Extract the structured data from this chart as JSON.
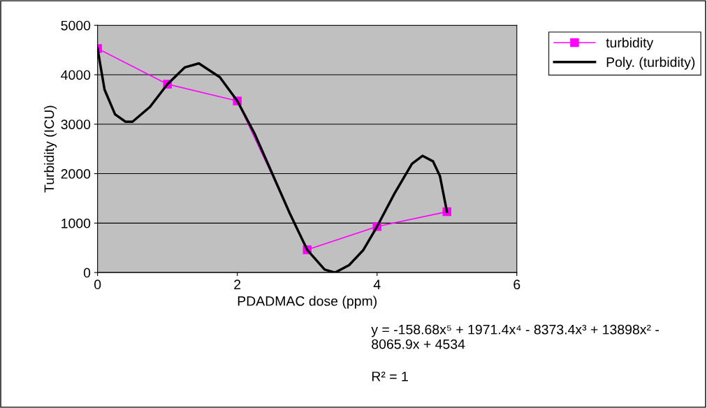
{
  "chart_data": {
    "type": "line",
    "xlabel": "PDADMAC dose (ppm)",
    "ylabel": "Turbidity (ICU)",
    "xlim": [
      0,
      6
    ],
    "xticks": [
      0,
      2,
      4,
      6
    ],
    "ylim": [
      0,
      5000
    ],
    "yticks": [
      0,
      1000,
      2000,
      3000,
      4000,
      5000
    ],
    "grid": "y",
    "legend": "top right",
    "series": [
      {
        "name": "turbidity",
        "color": "#ff00ff",
        "marker": "square",
        "x": [
          0,
          1,
          2,
          3,
          4,
          5
        ],
        "values": [
          4530,
          3810,
          3470,
          460,
          930,
          1230
        ]
      },
      {
        "name": "Poly. (turbidity)",
        "color": "#000000",
        "marker": "none",
        "x": [
          0,
          0.1,
          0.25,
          0.4,
          0.5,
          0.75,
          1,
          1.25,
          1.45,
          1.75,
          2,
          2.25,
          2.5,
          2.75,
          3,
          3.25,
          3.4,
          3.6,
          3.8,
          4,
          4.25,
          4.5,
          4.65,
          4.8,
          4.9,
          5
        ],
        "values": [
          4530,
          3700,
          3200,
          3050,
          3050,
          3350,
          3810,
          4150,
          4230,
          3950,
          3470,
          2800,
          2000,
          1200,
          460,
          60,
          0,
          150,
          450,
          930,
          1600,
          2200,
          2360,
          2250,
          1950,
          1230
        ]
      }
    ],
    "annotations": [
      "y = -158.68x⁵ + 1971.4x⁴ - 8373.4x³ + 13898x² - 8065.9x + 4534",
      "R² = 1"
    ]
  }
}
